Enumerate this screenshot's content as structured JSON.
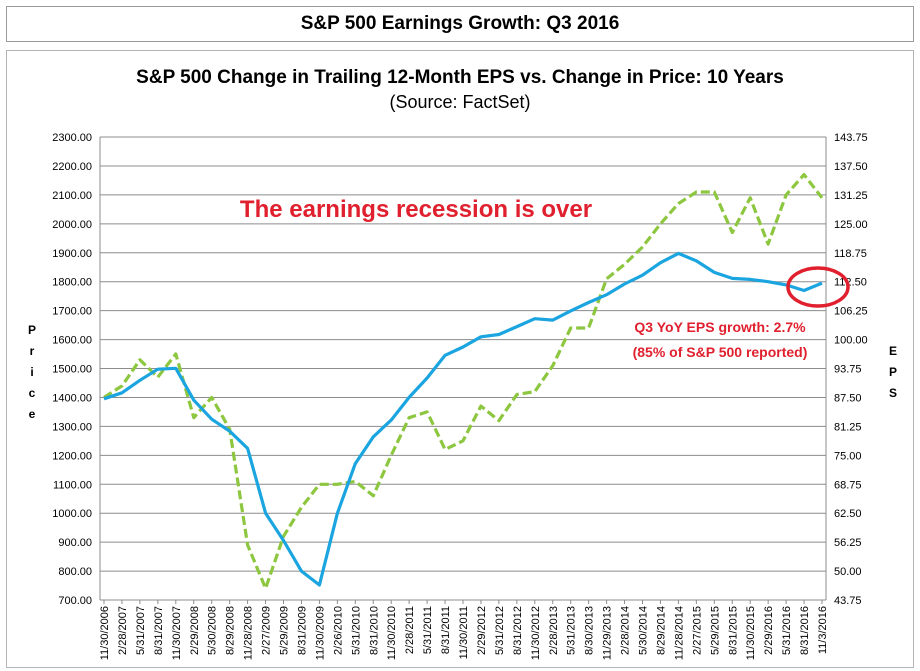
{
  "header": {
    "title": "S&P 500 Earnings Growth: Q3 2016"
  },
  "chart_data": {
    "type": "line",
    "title": "S&P 500 Change in Trailing 12-Month EPS vs. Change in Price: 10 Years",
    "subtitle": "(Source: FactSet)",
    "ylabel": "Price",
    "y2label": "EPS",
    "ylim": [
      700,
      2300
    ],
    "y2lim": [
      43.75,
      143.75
    ],
    "yticks": [
      "2300.00",
      "2200.00",
      "2100.00",
      "2000.00",
      "1900.00",
      "1800.00",
      "1700.00",
      "1600.00",
      "1500.00",
      "1400.00",
      "1300.00",
      "1200.00",
      "1100.00",
      "1000.00",
      "900.00",
      "800.00",
      "700.00"
    ],
    "y2ticks": [
      "143.75",
      "137.50",
      "131.25",
      "125.00",
      "118.75",
      "112.50",
      "106.25",
      "100.00",
      "93.75",
      "87.50",
      "81.25",
      "75.00",
      "68.75",
      "62.50",
      "56.25",
      "50.00",
      "43.75"
    ],
    "x_tick_labels": [
      "11/30/2006",
      "2/28/2007",
      "5/31/2007",
      "8/31/2007",
      "11/30/2007",
      "2/29/2008",
      "5/30/2008",
      "8/29/2008",
      "11/28/2008",
      "2/27/2009",
      "5/29/2009",
      "8/31/2009",
      "11/30/2009",
      "2/26/2010",
      "5/31/2010",
      "8/31/2010",
      "11/30/2010",
      "2/28/2011",
      "5/31/2011",
      "8/31/2011",
      "11/30/2011",
      "2/29/2012",
      "5/31/2012",
      "8/31/2012",
      "11/30/2012",
      "2/28/2013",
      "5/31/2013",
      "8/30/2013",
      "11/29/2013",
      "2/28/2014",
      "5/30/2014",
      "8/29/2014",
      "11/28/2014",
      "2/27/2015",
      "5/29/2015",
      "8/31/2015",
      "11/30/2015",
      "2/29/2016",
      "5/31/2016",
      "8/31/2016",
      "11/3/2016"
    ],
    "series": [
      {
        "name": "Price",
        "axis": "left",
        "color": "#8dc63f",
        "style": "dashed",
        "points": [
          [
            "11/30/2006",
            1400
          ],
          [
            "2/28/2007",
            1440
          ],
          [
            "5/31/2007",
            1530
          ],
          [
            "8/31/2007",
            1470
          ],
          [
            "11/30/2007",
            1550
          ],
          [
            "2/29/2008",
            1330
          ],
          [
            "5/30/2008",
            1400
          ],
          [
            "8/29/2008",
            1290
          ],
          [
            "11/28/2008",
            890
          ],
          [
            "2/27/2009",
            740
          ],
          [
            "5/29/2009",
            920
          ],
          [
            "8/31/2009",
            1020
          ],
          [
            "11/30/2009",
            1100
          ],
          [
            "2/26/2010",
            1100
          ],
          [
            "5/31/2010",
            1110
          ],
          [
            "8/31/2010",
            1060
          ],
          [
            "11/30/2010",
            1200
          ],
          [
            "2/28/2011",
            1330
          ],
          [
            "5/31/2011",
            1350
          ],
          [
            "8/31/2011",
            1220
          ],
          [
            "11/30/2011",
            1250
          ],
          [
            "2/29/2012",
            1370
          ],
          [
            "5/31/2012",
            1320
          ],
          [
            "8/31/2012",
            1410
          ],
          [
            "11/30/2012",
            1420
          ],
          [
            "2/28/2013",
            1510
          ],
          [
            "5/31/2013",
            1640
          ],
          [
            "8/30/2013",
            1640
          ],
          [
            "11/29/2013",
            1810
          ],
          [
            "2/28/2014",
            1860
          ],
          [
            "5/30/2014",
            1920
          ],
          [
            "8/29/2014",
            2000
          ],
          [
            "11/28/2014",
            2070
          ],
          [
            "2/27/2015",
            2110
          ],
          [
            "5/29/2015",
            2110
          ],
          [
            "8/31/2015",
            1970
          ],
          [
            "11/30/2015",
            2090
          ],
          [
            "2/29/2016",
            1930
          ],
          [
            "5/31/2016",
            2100
          ],
          [
            "8/31/2016",
            2170
          ],
          [
            "11/3/2016",
            2090
          ]
        ]
      },
      {
        "name": "EPS",
        "axis": "right",
        "color": "#1ba5e0",
        "style": "solid",
        "points": [
          [
            "11/30/2006",
            87.2
          ],
          [
            "2/28/2007",
            88.5
          ],
          [
            "5/31/2007",
            91.2
          ],
          [
            "8/31/2007",
            93.6
          ],
          [
            "11/30/2007",
            93.8
          ],
          [
            "2/29/2008",
            86.9
          ],
          [
            "5/30/2008",
            82.8
          ],
          [
            "8/29/2008",
            80.2
          ],
          [
            "11/28/2008",
            76.5
          ],
          [
            "2/27/2009",
            62.5
          ],
          [
            "5/29/2009",
            56.6
          ],
          [
            "8/31/2009",
            50.0
          ],
          [
            "11/30/2009",
            47.0
          ],
          [
            "2/26/2010",
            62.5
          ],
          [
            "5/31/2010",
            73.2
          ],
          [
            "8/31/2010",
            79.0
          ],
          [
            "11/30/2010",
            82.6
          ],
          [
            "2/28/2011",
            87.5
          ],
          [
            "5/31/2011",
            91.7
          ],
          [
            "8/31/2011",
            96.6
          ],
          [
            "11/30/2011",
            98.4
          ],
          [
            "2/29/2012",
            100.6
          ],
          [
            "5/31/2012",
            101.1
          ],
          [
            "8/31/2012",
            102.8
          ],
          [
            "11/30/2012",
            104.5
          ],
          [
            "2/28/2013",
            104.2
          ],
          [
            "5/31/2013",
            106.2
          ],
          [
            "8/30/2013",
            108.0
          ],
          [
            "11/29/2013",
            109.7
          ],
          [
            "2/28/2014",
            112.0
          ],
          [
            "5/30/2014",
            113.9
          ],
          [
            "8/29/2014",
            116.6
          ],
          [
            "11/28/2014",
            118.6
          ],
          [
            "2/27/2015",
            117.0
          ],
          [
            "5/29/2015",
            114.5
          ],
          [
            "8/31/2015",
            113.2
          ],
          [
            "11/30/2015",
            113.0
          ],
          [
            "2/29/2016",
            112.5
          ],
          [
            "5/31/2016",
            111.8
          ],
          [
            "8/31/2016",
            110.6
          ],
          [
            "11/3/2016",
            112.2
          ]
        ]
      }
    ],
    "annotations": {
      "headline": "The earnings recession is over",
      "growth": "Q3 YoY EPS growth: 2.7%",
      "reported": "(85% of S&P 500 reported)"
    },
    "highlight_color": "#e0202e",
    "grid": true,
    "legend": "none"
  }
}
